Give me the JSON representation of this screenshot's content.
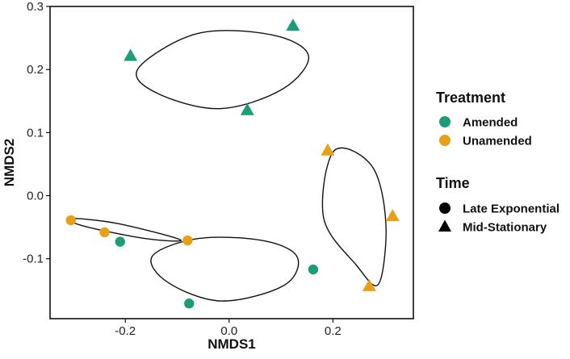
{
  "chart_data": {
    "type": "scatter",
    "title": "",
    "xlabel": "NMDS1",
    "ylabel": "NMDS2",
    "xlim": [
      -0.345,
      0.355
    ],
    "ylim": [
      -0.195,
      0.3
    ],
    "xticks": [
      -0.2,
      0.0,
      0.2
    ],
    "xtick_labels": [
      "-0.2",
      "0.0",
      "0.2"
    ],
    "yticks": [
      0.3,
      0.2,
      0.1,
      0.0,
      -0.1
    ],
    "ytick_labels": [
      "0.3",
      "0.2",
      "0.1",
      "0.0",
      "-0.1"
    ],
    "grid": false,
    "colors": {
      "Amended": "#1b9e77",
      "Unamended": "#e6a117"
    },
    "points": [
      {
        "x": -0.19,
        "y": 0.222,
        "treatment": "Amended",
        "time": "Mid-Stationary"
      },
      {
        "x": 0.123,
        "y": 0.27,
        "treatment": "Amended",
        "time": "Mid-Stationary"
      },
      {
        "x": 0.035,
        "y": 0.136,
        "treatment": "Amended",
        "time": "Mid-Stationary"
      },
      {
        "x": -0.21,
        "y": -0.073,
        "treatment": "Amended",
        "time": "Late Exponential"
      },
      {
        "x": -0.077,
        "y": -0.171,
        "treatment": "Amended",
        "time": "Late Exponential"
      },
      {
        "x": 0.162,
        "y": -0.117,
        "treatment": "Amended",
        "time": "Late Exponential"
      },
      {
        "x": -0.305,
        "y": -0.039,
        "treatment": "Unamended",
        "time": "Late Exponential"
      },
      {
        "x": -0.24,
        "y": -0.058,
        "treatment": "Unamended",
        "time": "Late Exponential"
      },
      {
        "x": -0.08,
        "y": -0.071,
        "treatment": "Unamended",
        "time": "Late Exponential"
      },
      {
        "x": 0.19,
        "y": 0.072,
        "treatment": "Unamended",
        "time": "Mid-Stationary"
      },
      {
        "x": 0.315,
        "y": -0.032,
        "treatment": "Unamended",
        "time": "Mid-Stationary"
      },
      {
        "x": 0.27,
        "y": -0.143,
        "treatment": "Unamended",
        "time": "Mid-Stationary"
      }
    ],
    "ellipses": [
      {
        "group": "Amended / Mid-Stationary",
        "cx": -0.023,
        "cy": 0.205,
        "points": [
          [
            -0.175,
            0.202
          ],
          [
            -0.061,
            0.257
          ],
          [
            0.082,
            0.255
          ],
          [
            0.153,
            0.222
          ],
          [
            0.103,
            0.169
          ],
          [
            -0.019,
            0.138
          ],
          [
            -0.14,
            0.163
          ]
        ]
      },
      {
        "group": "Amended / Late Exponential",
        "cx": 0.016,
        "cy": -0.108,
        "points": [
          [
            -0.148,
            -0.096
          ],
          [
            -0.06,
            -0.068
          ],
          [
            0.064,
            -0.071
          ],
          [
            0.131,
            -0.097
          ],
          [
            0.106,
            -0.142
          ],
          [
            -0.014,
            -0.167
          ],
          [
            -0.117,
            -0.138
          ]
        ]
      },
      {
        "group": "Unamended / Late Exponential",
        "cx": -0.216,
        "cy": -0.054,
        "points": [
          [
            -0.31,
            -0.036
          ],
          [
            -0.216,
            -0.044
          ],
          [
            -0.094,
            -0.07
          ],
          [
            -0.161,
            -0.068
          ],
          [
            -0.276,
            -0.049
          ]
        ]
      },
      {
        "group": "Unamended / Mid-Stationary",
        "cx": 0.241,
        "cy": -0.034,
        "points": [
          [
            0.202,
            0.071
          ],
          [
            0.275,
            0.047
          ],
          [
            0.302,
            -0.043
          ],
          [
            0.288,
            -0.14
          ],
          [
            0.245,
            -0.11
          ],
          [
            0.182,
            -0.035
          ]
        ]
      }
    ]
  },
  "legend": {
    "treatment_title": "Treatment",
    "treatment_items": [
      {
        "label": "Amended",
        "color": "#1b9e77"
      },
      {
        "label": "Unamended",
        "color": "#e6a117"
      }
    ],
    "time_title": "Time",
    "time_items": [
      {
        "label": "Late Exponential",
        "shape": "circle"
      },
      {
        "label": "Mid-Stationary",
        "shape": "triangle"
      }
    ]
  }
}
